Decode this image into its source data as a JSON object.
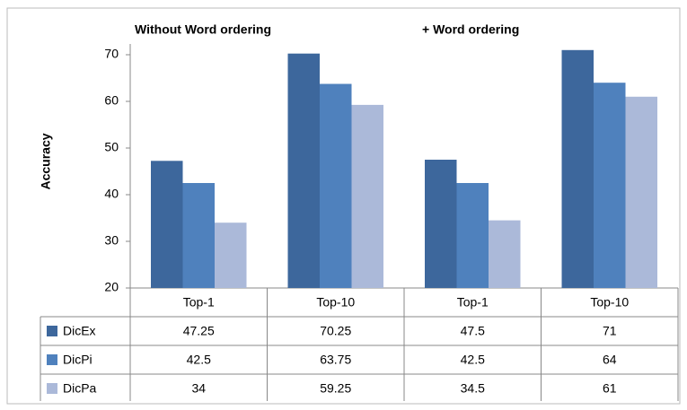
{
  "chart_data": {
    "type": "bar",
    "groups": [
      "Without Word ordering",
      "+ Word ordering"
    ],
    "y_label": "Accuracy",
    "categories": [
      "Top-1",
      "Top-10",
      "Top-1",
      "Top-10"
    ],
    "series": [
      {
        "name": "DicEx",
        "color": "#3d679c",
        "values": [
          47.25,
          70.25,
          47.5,
          71
        ]
      },
      {
        "name": "DicPi",
        "color": "#4f81bd",
        "values": [
          42.5,
          63.75,
          42.5,
          64
        ]
      },
      {
        "name": "DicPa",
        "color": "#abb9d9",
        "values": [
          34,
          59.25,
          34.5,
          61
        ]
      }
    ],
    "ylim": [
      20,
      80
    ],
    "yticks": [
      20,
      30,
      40,
      50,
      60,
      70
    ],
    "grid": false
  }
}
